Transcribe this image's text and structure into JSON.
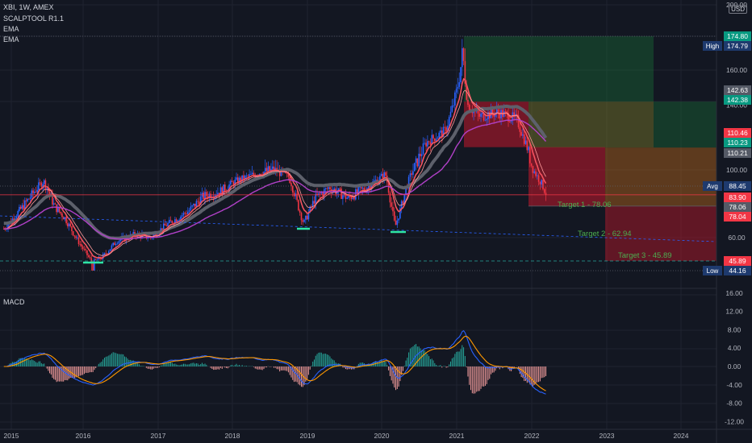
{
  "header": {
    "symbol": "XBI, 1W, AMEX",
    "indicator": "SCALPTOOL R1.1",
    "ema1": "EMA",
    "ema2": "EMA",
    "currency": "USD"
  },
  "macd_label": "MACD",
  "price_axis": [
    "200.00",
    "160.00",
    "140.00",
    "100.00",
    "60.00"
  ],
  "macd_axis": [
    "16.00",
    "12.00",
    "8.00",
    "4.00",
    "0.00",
    "-4.00",
    "-8.00",
    "-12.00"
  ],
  "time_axis": [
    "2015",
    "2016",
    "2017",
    "2018",
    "2019",
    "2020",
    "2021",
    "2022",
    "2023",
    "2024"
  ],
  "price_tags": [
    {
      "label": "",
      "value": "174.80",
      "color": "#089981"
    },
    {
      "label": "High",
      "value": "174.79",
      "color": "#1e3a6e"
    },
    {
      "label": "",
      "value": "142.63",
      "color": "#555a66"
    },
    {
      "label": "",
      "value": "142.38",
      "color": "#089981"
    },
    {
      "label": "",
      "value": "110.46",
      "color": "#f23645"
    },
    {
      "label": "",
      "value": "110.23",
      "color": "#089981"
    },
    {
      "label": "",
      "value": "110.21",
      "color": "#555a66"
    },
    {
      "label": "Avg",
      "value": "88.45",
      "color": "#1e3a6e"
    },
    {
      "label": "",
      "value": "83.90",
      "color": "#f23645"
    },
    {
      "label": "",
      "value": "78.06",
      "color": "#555a66"
    },
    {
      "label": "",
      "value": "78.04",
      "color": "#f23645"
    },
    {
      "label": "",
      "value": "45.89",
      "color": "#f23645"
    },
    {
      "label": "Low",
      "value": "44.16",
      "color": "#1e3a6e"
    }
  ],
  "targets": [
    {
      "text": "Target 1 - 78.06"
    },
    {
      "text": "Target 2 - 62.94"
    },
    {
      "text": "Target 3 - 45.89"
    }
  ],
  "colors": {
    "up": "#2962ff",
    "down": "#f23645",
    "ema_fast": "#f7525f",
    "ema_slow": "#b140c8",
    "target": "#4caf50"
  }
}
